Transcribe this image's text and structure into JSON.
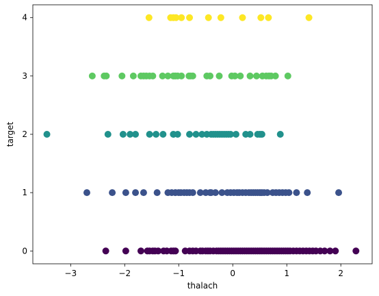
{
  "chart_data": {
    "type": "scatter",
    "xlabel": "thalach",
    "ylabel": "target",
    "xlim": [
      -3.7,
      2.58
    ],
    "ylim": [
      -0.22,
      4.22
    ],
    "xticks": [
      -3,
      -2,
      -1,
      0,
      1,
      2
    ],
    "yticks": [
      0,
      1,
      2,
      3,
      4
    ],
    "xtick_labels": [
      "−3",
      "−2",
      "−1",
      "0",
      "1",
      "2"
    ],
    "ytick_labels": [
      "0",
      "1",
      "2",
      "3",
      "4"
    ],
    "grid": false,
    "legend": "none",
    "colors": {
      "0": "#440154",
      "1": "#3b528b",
      "2": "#21918c",
      "3": "#5ec962",
      "4": "#fde725"
    },
    "series": [
      {
        "target": 4,
        "x": [
          -1.55,
          -1.15,
          -1.1,
          -1.05,
          -0.95,
          -0.8,
          -0.45,
          -0.22,
          0.18,
          0.52,
          0.66,
          1.41
        ]
      },
      {
        "target": 3,
        "x": [
          -2.6,
          -2.38,
          -2.34,
          -2.05,
          -1.84,
          -1.7,
          -1.65,
          -1.6,
          -1.54,
          -1.48,
          -1.3,
          -1.2,
          -1.1,
          -1.06,
          -1.02,
          -0.95,
          -0.81,
          -0.78,
          -0.74,
          -0.48,
          -0.42,
          -0.25,
          -0.02,
          0.04,
          0.14,
          0.32,
          0.44,
          0.55,
          0.62,
          0.67,
          0.71,
          0.79,
          1.02
        ]
      },
      {
        "target": 2,
        "x": [
          -3.44,
          -2.31,
          -2.03,
          -1.9,
          -1.8,
          -1.54,
          -1.42,
          -1.29,
          -1.1,
          -1.02,
          -0.8,
          -0.68,
          -0.57,
          -0.48,
          -0.4,
          -0.36,
          -0.32,
          -0.28,
          -0.24,
          -0.2,
          -0.16,
          -0.12,
          -0.08,
          -0.04,
          0.06,
          0.24,
          0.32,
          0.46,
          0.5,
          0.54,
          0.88
        ]
      },
      {
        "target": 1,
        "x": [
          -2.7,
          -2.23,
          -1.98,
          -1.8,
          -1.65,
          -1.4,
          -1.2,
          -1.13,
          -1.06,
          -1.0,
          -0.96,
          -0.9,
          -0.85,
          -0.8,
          -0.74,
          -0.6,
          -0.5,
          -0.42,
          -0.4,
          -0.32,
          -0.2,
          -0.1,
          -0.04,
          0.02,
          0.08,
          0.12,
          0.18,
          0.24,
          0.3,
          0.34,
          0.38,
          0.42,
          0.46,
          0.5,
          0.54,
          0.58,
          0.64,
          0.74,
          0.8,
          0.86,
          0.92,
          0.98,
          1.04,
          1.18,
          1.38,
          1.96
        ]
      },
      {
        "target": 0,
        "x": [
          -2.35,
          -1.98,
          -1.7,
          -1.58,
          -1.54,
          -1.48,
          -1.44,
          -1.38,
          -1.28,
          -1.22,
          -1.14,
          -1.1,
          -1.06,
          -0.88,
          -0.8,
          -0.74,
          -0.68,
          -0.6,
          -0.56,
          -0.5,
          -0.46,
          -0.42,
          -0.36,
          -0.3,
          -0.26,
          -0.22,
          -0.18,
          -0.14,
          -0.1,
          -0.06,
          -0.02,
          0.02,
          0.06,
          0.1,
          0.14,
          0.18,
          0.22,
          0.26,
          0.3,
          0.34,
          0.38,
          0.42,
          0.46,
          0.5,
          0.54,
          0.58,
          0.62,
          0.66,
          0.7,
          0.74,
          0.78,
          0.82,
          0.86,
          0.9,
          0.94,
          0.98,
          1.02,
          1.06,
          1.12,
          1.18,
          1.24,
          1.3,
          1.36,
          1.42,
          1.48,
          1.54,
          1.62,
          1.7,
          1.8,
          1.9,
          2.28
        ]
      }
    ]
  }
}
